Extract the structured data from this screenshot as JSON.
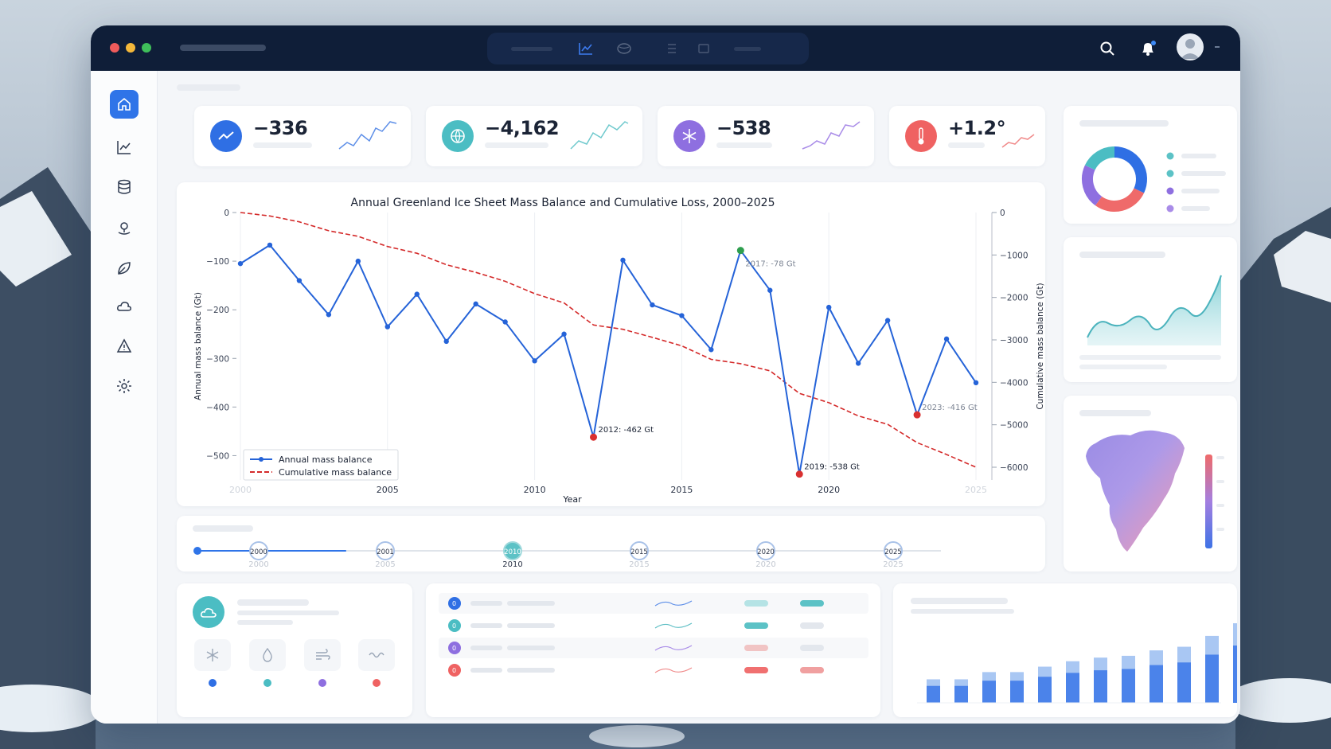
{
  "kpis": [
    {
      "value": "−336",
      "icon": "trend-icon",
      "color": "#2f6fe4"
    },
    {
      "value": "−4,162",
      "icon": "globe-icon",
      "color": "#4bbdc3"
    },
    {
      "value": "−538",
      "icon": "snowflake-icon",
      "color": "#8e6fe0"
    },
    {
      "value": "+1.2°",
      "icon": "thermometer-icon",
      "color": "#ef6262"
    }
  ],
  "chart_data": {
    "type": "line",
    "title": "Annual Greenland Ice Sheet Mass Balance and Cumulative Loss, 2000–2025",
    "xlabel": "Year",
    "ylabel": "Annual mass balance (Gt)",
    "y2label": "Cumulative mass balance (Gt)",
    "xlim": [
      2000,
      2025
    ],
    "ylim": [
      -550,
      0
    ],
    "y2lim": [
      -6300,
      0
    ],
    "x_ticks": [
      "2000",
      "2005",
      "2010",
      "2015",
      "2020",
      "2025"
    ],
    "y_ticks": [
      "0",
      "−100",
      "−200",
      "−300",
      "−400",
      "−500"
    ],
    "y2_ticks": [
      "0",
      "−1000",
      "−2000",
      "−3000",
      "−4000",
      "−5000",
      "−6000"
    ],
    "legend_position": "bottom-left",
    "grid": true,
    "x": [
      2000,
      2001,
      2002,
      2003,
      2004,
      2005,
      2006,
      2007,
      2008,
      2009,
      2010,
      2011,
      2012,
      2013,
      2014,
      2015,
      2016,
      2017,
      2018,
      2019,
      2020,
      2021,
      2022,
      2023,
      2024,
      2025
    ],
    "series": [
      {
        "name": "Annual mass balance",
        "color": "#2563d8",
        "values": [
          -105,
          -67,
          -140,
          -210,
          -100,
          -235,
          -168,
          -265,
          -188,
          -225,
          -305,
          -250,
          -462,
          -98,
          -190,
          -212,
          -282,
          -78,
          -160,
          -538,
          -195,
          -310,
          -222,
          -416,
          -260,
          -350
        ]
      },
      {
        "name": "Cumulative mass balance",
        "color": "#d42a2a",
        "values": [
          0,
          -80,
          -220,
          -430,
          -560,
          -800,
          -960,
          -1230,
          -1410,
          -1620,
          -1910,
          -2130,
          -2650,
          -2750,
          -2940,
          -3140,
          -3460,
          -3560,
          -3730,
          -4260,
          -4480,
          -4790,
          -4990,
          -5420,
          -5700,
          -6000
        ]
      }
    ],
    "annotations": [
      {
        "x": 2012,
        "y": -462,
        "text": "2012: -462 Gt"
      },
      {
        "x": 2017,
        "y": -78,
        "text": "2017: -78 Gt"
      },
      {
        "x": 2019,
        "y": -538,
        "text": "2019: -538 Gt"
      },
      {
        "x": 2023,
        "y": -416,
        "text": "2023: -416 Gt"
      }
    ]
  },
  "timeline": {
    "years": [
      "2000",
      "2005",
      "2010",
      "2015",
      "2020",
      "2025"
    ],
    "knobs": [
      "2000",
      "2001",
      "2010",
      "2015",
      "2020",
      "2025"
    ],
    "active": "2010",
    "progress": 0.2
  },
  "colors": {
    "titlebar": "#0f1e38",
    "accent": "#2f74e8",
    "teal": "#4bbdc3",
    "purple": "#8e6fe0",
    "red": "#ef6262"
  },
  "sidebar": {
    "items": [
      "home-icon",
      "chart-icon",
      "database-icon",
      "location-icon",
      "leaf-icon",
      "cloud-icon",
      "warning-icon",
      "gear-icon"
    ]
  },
  "donut": {
    "slices": [
      {
        "value": 32,
        "color": "#2f6fe4"
      },
      {
        "value": 28,
        "color": "#ef6a6a"
      },
      {
        "value": 22,
        "color": "#8e6fe0"
      },
      {
        "value": 18,
        "color": "#4bbdc3"
      }
    ]
  },
  "bars": {
    "values": [
      26,
      26,
      34,
      34,
      40,
      46,
      50,
      52,
      58,
      62,
      74,
      88
    ]
  }
}
